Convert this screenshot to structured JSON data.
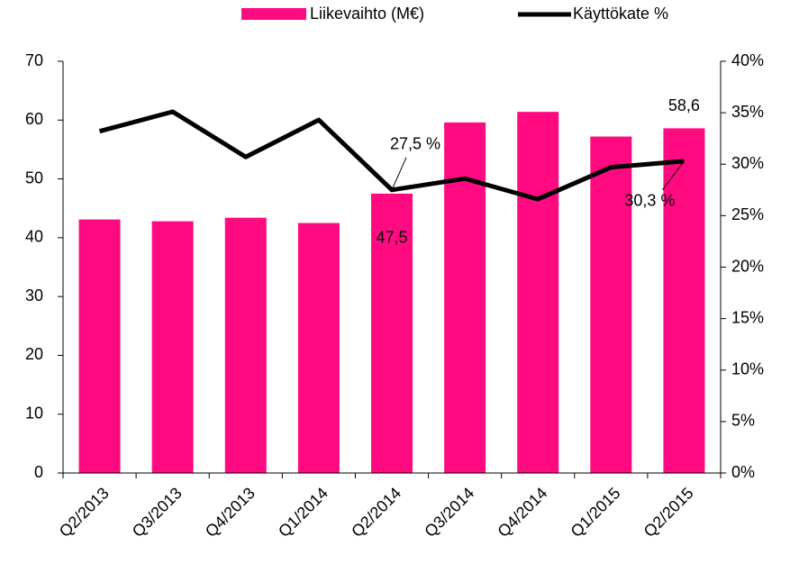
{
  "chart_data": {
    "type": "bar",
    "categories": [
      "Q2/2013",
      "Q3/2013",
      "Q4/2013",
      "Q1/2014",
      "Q2/2014",
      "Q3/2014",
      "Q4/2014",
      "Q1/2015",
      "Q2/2015"
    ],
    "series": [
      {
        "name": "Liikevaihto (M€)",
        "type": "bar",
        "color": "#ff0a80",
        "values": [
          43.1,
          42.8,
          43.4,
          42.5,
          47.5,
          59.6,
          61.4,
          57.2,
          58.6
        ],
        "value_labels": [
          null,
          null,
          null,
          null,
          "47,5",
          null,
          null,
          null,
          "58,6"
        ]
      },
      {
        "name": "Käyttökate %",
        "type": "line",
        "axis": "y2",
        "color": "#000000",
        "values": [
          33.2,
          35.1,
          30.7,
          34.3,
          27.5,
          28.6,
          26.6,
          29.7,
          30.3
        ],
        "value_labels": [
          null,
          null,
          null,
          null,
          "27,5 %",
          null,
          null,
          null,
          "30,3 %"
        ]
      }
    ],
    "ylim": [
      0,
      70
    ],
    "yticks": [
      0,
      10,
      20,
      30,
      40,
      50,
      60,
      70
    ],
    "y2lim": [
      0,
      40
    ],
    "y2ticks": [
      {
        "value": 0,
        "label": "0%"
      },
      {
        "value": 5,
        "label": "5%"
      },
      {
        "value": 10,
        "label": "10%"
      },
      {
        "value": 15,
        "label": "15%"
      },
      {
        "value": 20,
        "label": "20%"
      },
      {
        "value": 25,
        "label": "25%"
      },
      {
        "value": 30,
        "label": "30%"
      },
      {
        "value": 35,
        "label": "35%"
      },
      {
        "value": 40,
        "label": "40%"
      }
    ],
    "legend": "top",
    "grid": false
  }
}
